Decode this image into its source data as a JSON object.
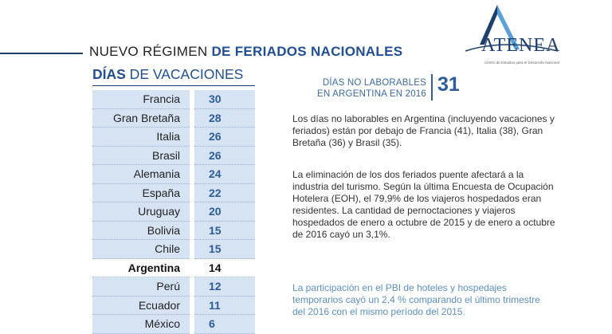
{
  "header": {
    "title_regular": "NUEVO RÉGIMEN ",
    "title_bold": "DE FERIADOS NACIONALES"
  },
  "logo": {
    "name": "ATENEA",
    "tagline": "Centro de Estudios para el Desarrollo Nacional"
  },
  "vacations": {
    "title_bold": "DÍAS",
    "title_regular": " DE VACACIONES",
    "rows": [
      {
        "country": "Francia",
        "days": "30"
      },
      {
        "country": "Gran Bretaña",
        "days": "28"
      },
      {
        "country": "Italia",
        "days": "26"
      },
      {
        "country": "Brasil",
        "days": "26"
      },
      {
        "country": "Alemania",
        "days": "24"
      },
      {
        "country": "España",
        "days": "22"
      },
      {
        "country": "Uruguay",
        "days": "20"
      },
      {
        "country": "Bolivia",
        "days": "15"
      },
      {
        "country": "Chile",
        "days": "15"
      },
      {
        "country": "Argentina",
        "days": "14"
      },
      {
        "country": "Perú",
        "days": "12"
      },
      {
        "country": "Ecuador",
        "days": "11"
      },
      {
        "country": "México",
        "days": "6"
      }
    ]
  },
  "summary": {
    "line1": "DÍAS NO LABORABLES",
    "line2": "EN ARGENTINA EN 2016",
    "number": "31"
  },
  "paragraphs": {
    "p1": "Los días no laborables en Argentina (incluyendo vacaciones y feriados) están por debajo de Francia (41), Italia (38), Gran Bretaña (36) y Brasil (35).",
    "p2": "La eliminación de los dos feriados puente afectará a la industria del turismo. Según la última Encuesta de Ocupación Hotelera (EOH), el 79,9% de los viajeros hospedados eran residentes. La cantidad de pernoctaciones y viajeros hospedados de enero a octubre de 2015 y de enero a octubre de 2016 cayó un 3,1%.",
    "p3": "La participación en el PBI de hoteles y hospedajes temporarios cayó un 2,4 % comparando el último trimestre del 2016 con el mismo período del 2015."
  }
}
